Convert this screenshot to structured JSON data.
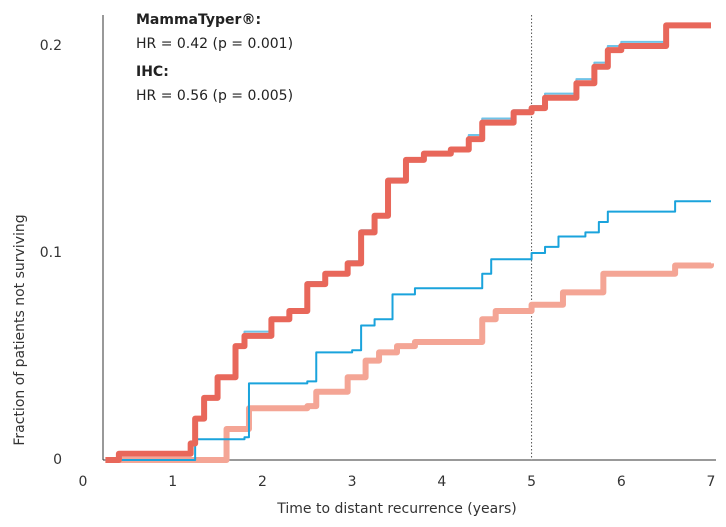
{
  "chart_data": {
    "type": "step",
    "xlabel": "Time to distant recurrence (years)",
    "ylabel": "Fraction of patients not surviving",
    "xlim": [
      0,
      7
    ],
    "ylim": [
      0,
      0.215
    ],
    "xticks": [
      0,
      1,
      2,
      3,
      4,
      5,
      6,
      7
    ],
    "yticks": [
      0,
      0.1,
      0.2
    ],
    "vline": 5,
    "annotations": [
      "MammaTyper®:",
      "HR = 0.42 (p = 0.001)",
      "IHC:",
      "HR = 0.56 (p = 0.005)"
    ],
    "series": [
      {
        "color": "#f4a595",
        "width": 6,
        "x": [
          0.25,
          1.55,
          1.6,
          1.85,
          2.5,
          2.6,
          2.95,
          3.15,
          3.3,
          3.5,
          3.7,
          4.45,
          4.6,
          5.0,
          5.35,
          5.8,
          6.6,
          7
        ],
        "values": [
          0,
          0,
          0.015,
          0.025,
          0.026,
          0.033,
          0.04,
          0.048,
          0.052,
          0.055,
          0.057,
          0.068,
          0.072,
          0.075,
          0.081,
          0.09,
          0.094,
          0.095
        ]
      },
      {
        "color": "#1aa3dc",
        "width": 2,
        "x": [
          0.25,
          1.2,
          1.25,
          1.8,
          1.85,
          2.5,
          2.6,
          3.0,
          3.1,
          3.25,
          3.45,
          3.7,
          4.45,
          4.55,
          5.0,
          5.15,
          5.3,
          5.6,
          5.75,
          5.85,
          6.6,
          7
        ],
        "values": [
          0,
          0,
          0.01,
          0.011,
          0.037,
          0.038,
          0.052,
          0.053,
          0.065,
          0.068,
          0.08,
          0.083,
          0.09,
          0.097,
          0.1,
          0.103,
          0.108,
          0.11,
          0.115,
          0.12,
          0.125,
          0.125
        ]
      },
      {
        "color": "#6fc3e8",
        "width": 2,
        "x": [
          0.25,
          0.4,
          1.2,
          1.25,
          1.35,
          1.5,
          1.7,
          1.8,
          2.1,
          2.3,
          2.5,
          2.7,
          2.95,
          3.1,
          3.25,
          3.4,
          3.6,
          3.8,
          4.1,
          4.3,
          4.45,
          4.8,
          5.0,
          5.15,
          5.5,
          5.7,
          5.85,
          6.0,
          6.5,
          7
        ],
        "values": [
          0,
          0.003,
          0.009,
          0.02,
          0.03,
          0.04,
          0.055,
          0.062,
          0.068,
          0.072,
          0.086,
          0.09,
          0.096,
          0.111,
          0.118,
          0.136,
          0.145,
          0.148,
          0.15,
          0.157,
          0.165,
          0.169,
          0.171,
          0.177,
          0.184,
          0.192,
          0.2,
          0.202,
          0.21,
          0.21
        ]
      },
      {
        "color": "#e8675a",
        "width": 6,
        "x": [
          0.25,
          0.4,
          1.2,
          1.25,
          1.35,
          1.5,
          1.7,
          1.8,
          2.1,
          2.3,
          2.5,
          2.7,
          2.95,
          3.1,
          3.25,
          3.4,
          3.6,
          3.8,
          4.1,
          4.3,
          4.45,
          4.8,
          5.0,
          5.15,
          5.5,
          5.7,
          5.85,
          6.0,
          6.5,
          7
        ],
        "values": [
          0,
          0.003,
          0.008,
          0.02,
          0.03,
          0.04,
          0.055,
          0.06,
          0.068,
          0.072,
          0.085,
          0.09,
          0.095,
          0.11,
          0.118,
          0.135,
          0.145,
          0.148,
          0.15,
          0.155,
          0.163,
          0.168,
          0.17,
          0.175,
          0.182,
          0.19,
          0.198,
          0.2,
          0.21,
          0.21
        ]
      }
    ]
  }
}
